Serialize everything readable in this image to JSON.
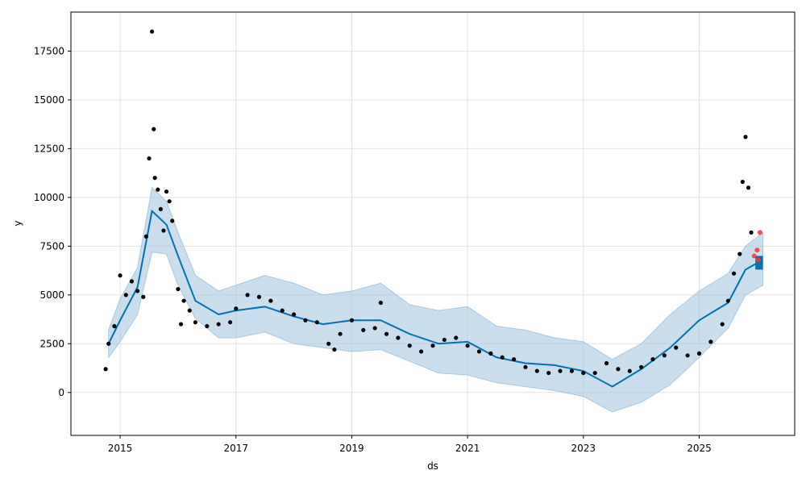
{
  "chart_data": {
    "type": "line",
    "title": "",
    "xlabel": "ds",
    "ylabel": "y",
    "xlim": [
      2014.15,
      2026.65
    ],
    "ylim": [
      -2200,
      19500
    ],
    "x_ticks": [
      2015,
      2017,
      2019,
      2021,
      2023,
      2025
    ],
    "x_tick_labels": [
      "2015",
      "2017",
      "2019",
      "2021",
      "2023",
      "2025"
    ],
    "y_ticks": [
      0,
      2500,
      5000,
      7500,
      10000,
      12500,
      15000,
      17500
    ],
    "y_tick_labels": [
      "0",
      "2500",
      "5000",
      "7500",
      "10000",
      "12500",
      "15000",
      "17500"
    ],
    "grid": true,
    "colors": {
      "forecast": "#0072B2",
      "interval": "#A7C8E2",
      "observed": "#000000",
      "recent": "#FF3333"
    },
    "series": [
      {
        "kind": "band",
        "x": [
          2014.8,
          2015.0,
          2015.3,
          2015.55,
          2015.8,
          2016.0,
          2016.3,
          2016.7,
          2017.0,
          2017.5,
          2018.0,
          2018.5,
          2019.0,
          2019.5,
          2020.0,
          2020.5,
          2021.0,
          2021.5,
          2022.0,
          2022.5,
          2023.0,
          2023.5,
          2024.0,
          2024.5,
          2025.0,
          2025.5,
          2025.8,
          2026.1
        ],
        "lower": [
          1800,
          2600,
          4000,
          7200,
          7100,
          5500,
          3800,
          2800,
          2800,
          3100,
          2500,
          2300,
          2100,
          2200,
          1600,
          1000,
          900,
          500,
          300,
          100,
          -200,
          -1000,
          -500,
          400,
          1800,
          3300,
          5000,
          5500
        ],
        "upper": [
          3200,
          4800,
          6400,
          10500,
          9800,
          8200,
          6000,
          5200,
          5500,
          6000,
          5600,
          5000,
          5200,
          5600,
          4500,
          4200,
          4400,
          3400,
          3200,
          2800,
          2600,
          1700,
          2500,
          4000,
          5200,
          6100,
          7500,
          8200
        ]
      },
      {
        "kind": "line",
        "x": [
          2014.8,
          2015.0,
          2015.3,
          2015.55,
          2015.8,
          2016.0,
          2016.3,
          2016.7,
          2017.0,
          2017.5,
          2018.0,
          2018.5,
          2019.0,
          2019.5,
          2020.0,
          2020.5,
          2021.0,
          2021.5,
          2022.0,
          2022.5,
          2023.0,
          2023.5,
          2024.0,
          2024.5,
          2025.0,
          2025.5,
          2025.8,
          2026.1
        ],
        "y": [
          2500,
          3700,
          5400,
          9300,
          8600,
          7000,
          4700,
          4000,
          4200,
          4400,
          3900,
          3500,
          3700,
          3700,
          3000,
          2500,
          2600,
          1800,
          1500,
          1400,
          1100,
          300,
          1200,
          2300,
          3700,
          4600,
          6300,
          6800
        ]
      },
      {
        "kind": "scatter",
        "x": [
          2014.75,
          2014.8,
          2014.9,
          2015.0,
          2015.1,
          2015.2,
          2015.3,
          2015.4,
          2015.45,
          2015.5,
          2015.55,
          2015.58,
          2015.6,
          2015.65,
          2015.7,
          2015.75,
          2015.8,
          2015.85,
          2015.9,
          2016.0,
          2016.05,
          2016.1,
          2016.2,
          2016.3,
          2016.5,
          2016.7,
          2016.9,
          2017.0,
          2017.2,
          2017.4,
          2017.6,
          2017.8,
          2018.0,
          2018.2,
          2018.4,
          2018.6,
          2018.7,
          2018.8,
          2019.0,
          2019.2,
          2019.4,
          2019.5,
          2019.6,
          2019.8,
          2020.0,
          2020.2,
          2020.4,
          2020.6,
          2020.8,
          2021.0,
          2021.2,
          2021.4,
          2021.6,
          2021.8,
          2022.0,
          2022.2,
          2022.4,
          2022.6,
          2022.8,
          2023.0,
          2023.2,
          2023.4,
          2023.6,
          2023.8,
          2024.0,
          2024.2,
          2024.4,
          2024.6,
          2024.8,
          2025.0,
          2025.2,
          2025.4,
          2025.5,
          2025.6,
          2025.7,
          2025.75,
          2025.8,
          2025.85,
          2025.9
        ],
        "y": [
          1200,
          2500,
          3400,
          6000,
          5000,
          5700,
          5200,
          4900,
          8000,
          12000,
          18500,
          13500,
          11000,
          10400,
          9400,
          8300,
          10300,
          9800,
          8800,
          5300,
          3500,
          4700,
          4200,
          3600,
          3400,
          3500,
          3600,
          4300,
          5000,
          4900,
          4700,
          4200,
          4000,
          3700,
          3600,
          2500,
          2200,
          3000,
          3700,
          3200,
          3300,
          4600,
          3000,
          2800,
          2400,
          2100,
          2400,
          2700,
          2800,
          2400,
          2100,
          2000,
          1800,
          1700,
          1300,
          1100,
          1000,
          1100,
          1100,
          1000,
          1000,
          1500,
          1200,
          1100,
          1300,
          1700,
          1900,
          2300,
          1900,
          2000,
          2600,
          3500,
          4700,
          6100,
          7100,
          10800,
          13100,
          10500,
          8200
        ]
      },
      {
        "kind": "scatter",
        "x": [
          2025.95,
          2026.0,
          2026.02,
          2026.05
        ],
        "y": [
          7000,
          7300,
          6800,
          8200
        ]
      }
    ]
  }
}
